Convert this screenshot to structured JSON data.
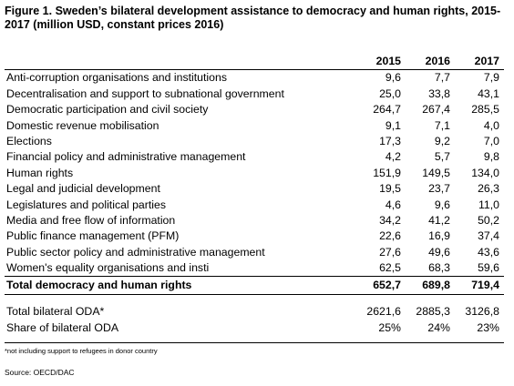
{
  "title": "Figure 1. Sweden’s bilateral development assistance to democracy and human rights, 2015-2017 (million USD, constant prices 2016)",
  "headers": [
    "2015",
    "2016",
    "2017"
  ],
  "rows": [
    {
      "label": "Anti-corruption organisations and institutions",
      "values": [
        "9,6",
        "7,7",
        "7,9"
      ]
    },
    {
      "label": "Decentralisation and support to subnational government",
      "values": [
        "25,0",
        "33,8",
        "43,1"
      ]
    },
    {
      "label": "Democratic participation and civil society",
      "values": [
        "264,7",
        "267,4",
        "285,5"
      ]
    },
    {
      "label": "Domestic revenue mobilisation",
      "values": [
        "9,1",
        "7,1",
        "4,0"
      ]
    },
    {
      "label": "Elections",
      "values": [
        "17,3",
        "9,2",
        "7,0"
      ]
    },
    {
      "label": "Financial policy and administrative management",
      "values": [
        "4,2",
        "5,7",
        "9,8"
      ]
    },
    {
      "label": "Human rights",
      "values": [
        "151,9",
        "149,5",
        "134,0"
      ]
    },
    {
      "label": "Legal and judicial development",
      "values": [
        "19,5",
        "23,7",
        "26,3"
      ]
    },
    {
      "label": "Legislatures and political parties",
      "values": [
        "4,6",
        "9,6",
        "11,0"
      ]
    },
    {
      "label": "Media and free flow of information",
      "values": [
        "34,2",
        "41,2",
        "50,2"
      ]
    },
    {
      "label": "Public finance management (PFM)",
      "values": [
        "22,6",
        "16,9",
        "37,4"
      ]
    },
    {
      "label": "Public sector policy and administrative management",
      "values": [
        "27,6",
        "49,6",
        "43,6"
      ]
    },
    {
      "label": "Women's equality organisations and insti",
      "values": [
        "62,5",
        "68,3",
        "59,6"
      ]
    }
  ],
  "total": {
    "label": "Total democracy and human rights",
    "values": [
      "652,7",
      "689,8",
      "719,4"
    ]
  },
  "oda": {
    "label": "Total bilateral ODA*",
    "values": [
      "2621,6",
      "2885,3",
      "3126,8"
    ]
  },
  "share": {
    "label": "Share of bilateral ODA",
    "values": [
      "25%",
      "24%",
      "23%"
    ]
  },
  "footnote": "*not including support to refugees in donor country",
  "source": "Source: OECD/DAC"
}
